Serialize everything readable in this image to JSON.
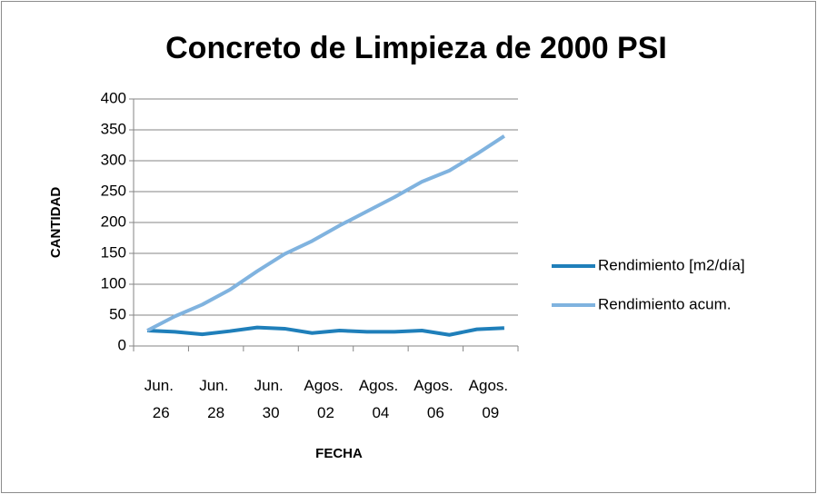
{
  "chart_data": {
    "type": "line",
    "title": "Concreto de Limpieza de 2000 PSI",
    "x_label": "FECHA",
    "y_label": "CANTIDAD",
    "categories": [
      "Jun. 26",
      null,
      "Jun. 28",
      null,
      "Jun. 30",
      null,
      "Agos. 02",
      null,
      "Agos. 04",
      null,
      "Agos. 06",
      null,
      "Agos. 09",
      null
    ],
    "series": [
      {
        "name": "Rendimiento [m2/día]",
        "color": "#1f7fba",
        "values": [
          25,
          23,
          19,
          24,
          30,
          28,
          21,
          25,
          23,
          23,
          25,
          18,
          27,
          29
        ]
      },
      {
        "name": "Rendimiento acum.",
        "color": "#80b3df",
        "values": [
          25,
          48,
          67,
          91,
          121,
          149,
          170,
          195,
          218,
          241,
          266,
          284,
          311,
          340
        ]
      }
    ],
    "ylim": [
      0,
      400
    ],
    "yticks": [
      0,
      50,
      100,
      150,
      200,
      250,
      300,
      350,
      400
    ],
    "grid": true,
    "legend": "right"
  }
}
